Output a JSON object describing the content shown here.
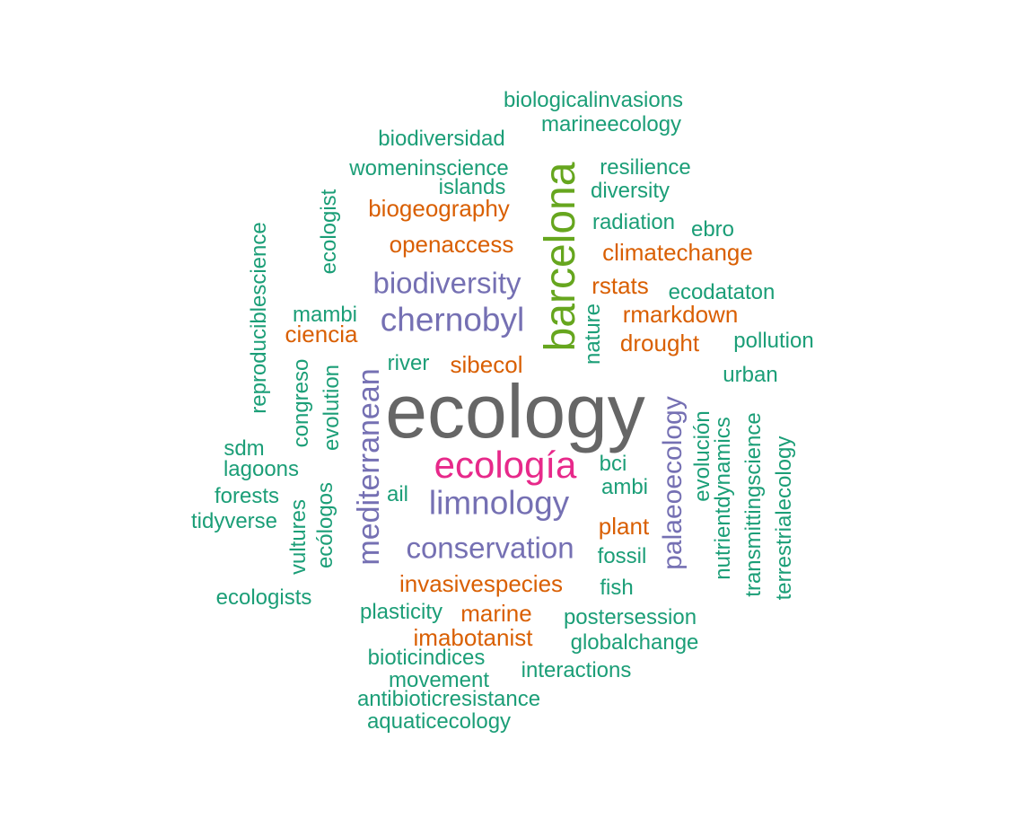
{
  "colors": {
    "teal": "#1b9e77",
    "orange": "#d95f02",
    "purple": "#7570b3",
    "magenta": "#e7298a",
    "green": "#66a61e",
    "gray": "#666666"
  },
  "words": [
    {
      "text": "ecology",
      "color": "gray",
      "rotated": false
    },
    {
      "text": "barcelona",
      "color": "green",
      "rotated": true
    },
    {
      "text": "ecología",
      "color": "magenta",
      "rotated": false
    },
    {
      "text": "mediterranean",
      "color": "purple",
      "rotated": true
    },
    {
      "text": "chernobyl",
      "color": "purple",
      "rotated": false
    },
    {
      "text": "limnology",
      "color": "purple",
      "rotated": false
    },
    {
      "text": "conservation",
      "color": "purple",
      "rotated": false
    },
    {
      "text": "biodiversity",
      "color": "purple",
      "rotated": false
    },
    {
      "text": "palaeoecology",
      "color": "purple",
      "rotated": true
    },
    {
      "text": "biogeography",
      "color": "orange",
      "rotated": false
    },
    {
      "text": "openaccess",
      "color": "orange",
      "rotated": false
    },
    {
      "text": "climatechange",
      "color": "orange",
      "rotated": false
    },
    {
      "text": "rstats",
      "color": "orange",
      "rotated": false
    },
    {
      "text": "rmarkdown",
      "color": "orange",
      "rotated": false
    },
    {
      "text": "drought",
      "color": "orange",
      "rotated": false
    },
    {
      "text": "sibecol",
      "color": "orange",
      "rotated": false
    },
    {
      "text": "ciencia",
      "color": "orange",
      "rotated": false
    },
    {
      "text": "invasivespecies",
      "color": "orange",
      "rotated": false
    },
    {
      "text": "plant",
      "color": "orange",
      "rotated": false
    },
    {
      "text": "marine",
      "color": "orange",
      "rotated": false
    },
    {
      "text": "imabotanist",
      "color": "orange",
      "rotated": false
    },
    {
      "text": "biologicalinvasions",
      "color": "teal",
      "rotated": false
    },
    {
      "text": "marineecology",
      "color": "teal",
      "rotated": false
    },
    {
      "text": "biodiversidad",
      "color": "teal",
      "rotated": false
    },
    {
      "text": "resilience",
      "color": "teal",
      "rotated": false
    },
    {
      "text": "womeninscience",
      "color": "teal",
      "rotated": false
    },
    {
      "text": "islands",
      "color": "teal",
      "rotated": false
    },
    {
      "text": "diversity",
      "color": "teal",
      "rotated": false
    },
    {
      "text": "radiation",
      "color": "teal",
      "rotated": false
    },
    {
      "text": "ebro",
      "color": "teal",
      "rotated": false
    },
    {
      "text": "ecologist",
      "color": "teal",
      "rotated": true
    },
    {
      "text": "reproduciblescience",
      "color": "teal",
      "rotated": true
    },
    {
      "text": "ecodataton",
      "color": "teal",
      "rotated": false
    },
    {
      "text": "mambi",
      "color": "teal",
      "rotated": false
    },
    {
      "text": "nature",
      "color": "teal",
      "rotated": true
    },
    {
      "text": "pollution",
      "color": "teal",
      "rotated": false
    },
    {
      "text": "river",
      "color": "teal",
      "rotated": false
    },
    {
      "text": "urban",
      "color": "teal",
      "rotated": false
    },
    {
      "text": "congreso",
      "color": "teal",
      "rotated": true
    },
    {
      "text": "evolution",
      "color": "teal",
      "rotated": true
    },
    {
      "text": "sdm",
      "color": "teal",
      "rotated": false
    },
    {
      "text": "lagoons",
      "color": "teal",
      "rotated": false
    },
    {
      "text": "bci",
      "color": "teal",
      "rotated": false
    },
    {
      "text": "evolución",
      "color": "teal",
      "rotated": true
    },
    {
      "text": "nutrientdynamics",
      "color": "teal",
      "rotated": true
    },
    {
      "text": "transmittingscience",
      "color": "teal",
      "rotated": true
    },
    {
      "text": "terrestrialecology",
      "color": "teal",
      "rotated": true
    },
    {
      "text": "ambi",
      "color": "teal",
      "rotated": false
    },
    {
      "text": "forests",
      "color": "teal",
      "rotated": false
    },
    {
      "text": "ail",
      "color": "teal",
      "rotated": false
    },
    {
      "text": "tidyverse",
      "color": "teal",
      "rotated": false
    },
    {
      "text": "vultures",
      "color": "teal",
      "rotated": true
    },
    {
      "text": "ecólogos",
      "color": "teal",
      "rotated": true
    },
    {
      "text": "fossil",
      "color": "teal",
      "rotated": false
    },
    {
      "text": "fish",
      "color": "teal",
      "rotated": false
    },
    {
      "text": "ecologists",
      "color": "teal",
      "rotated": false
    },
    {
      "text": "plasticity",
      "color": "teal",
      "rotated": false
    },
    {
      "text": "postersession",
      "color": "teal",
      "rotated": false
    },
    {
      "text": "globalchange",
      "color": "teal",
      "rotated": false
    },
    {
      "text": "bioticindices",
      "color": "teal",
      "rotated": false
    },
    {
      "text": "movement",
      "color": "teal",
      "rotated": false
    },
    {
      "text": "interactions",
      "color": "teal",
      "rotated": false
    },
    {
      "text": "antibioticresistance",
      "color": "teal",
      "rotated": false
    },
    {
      "text": "aquaticecology",
      "color": "teal",
      "rotated": false
    }
  ]
}
